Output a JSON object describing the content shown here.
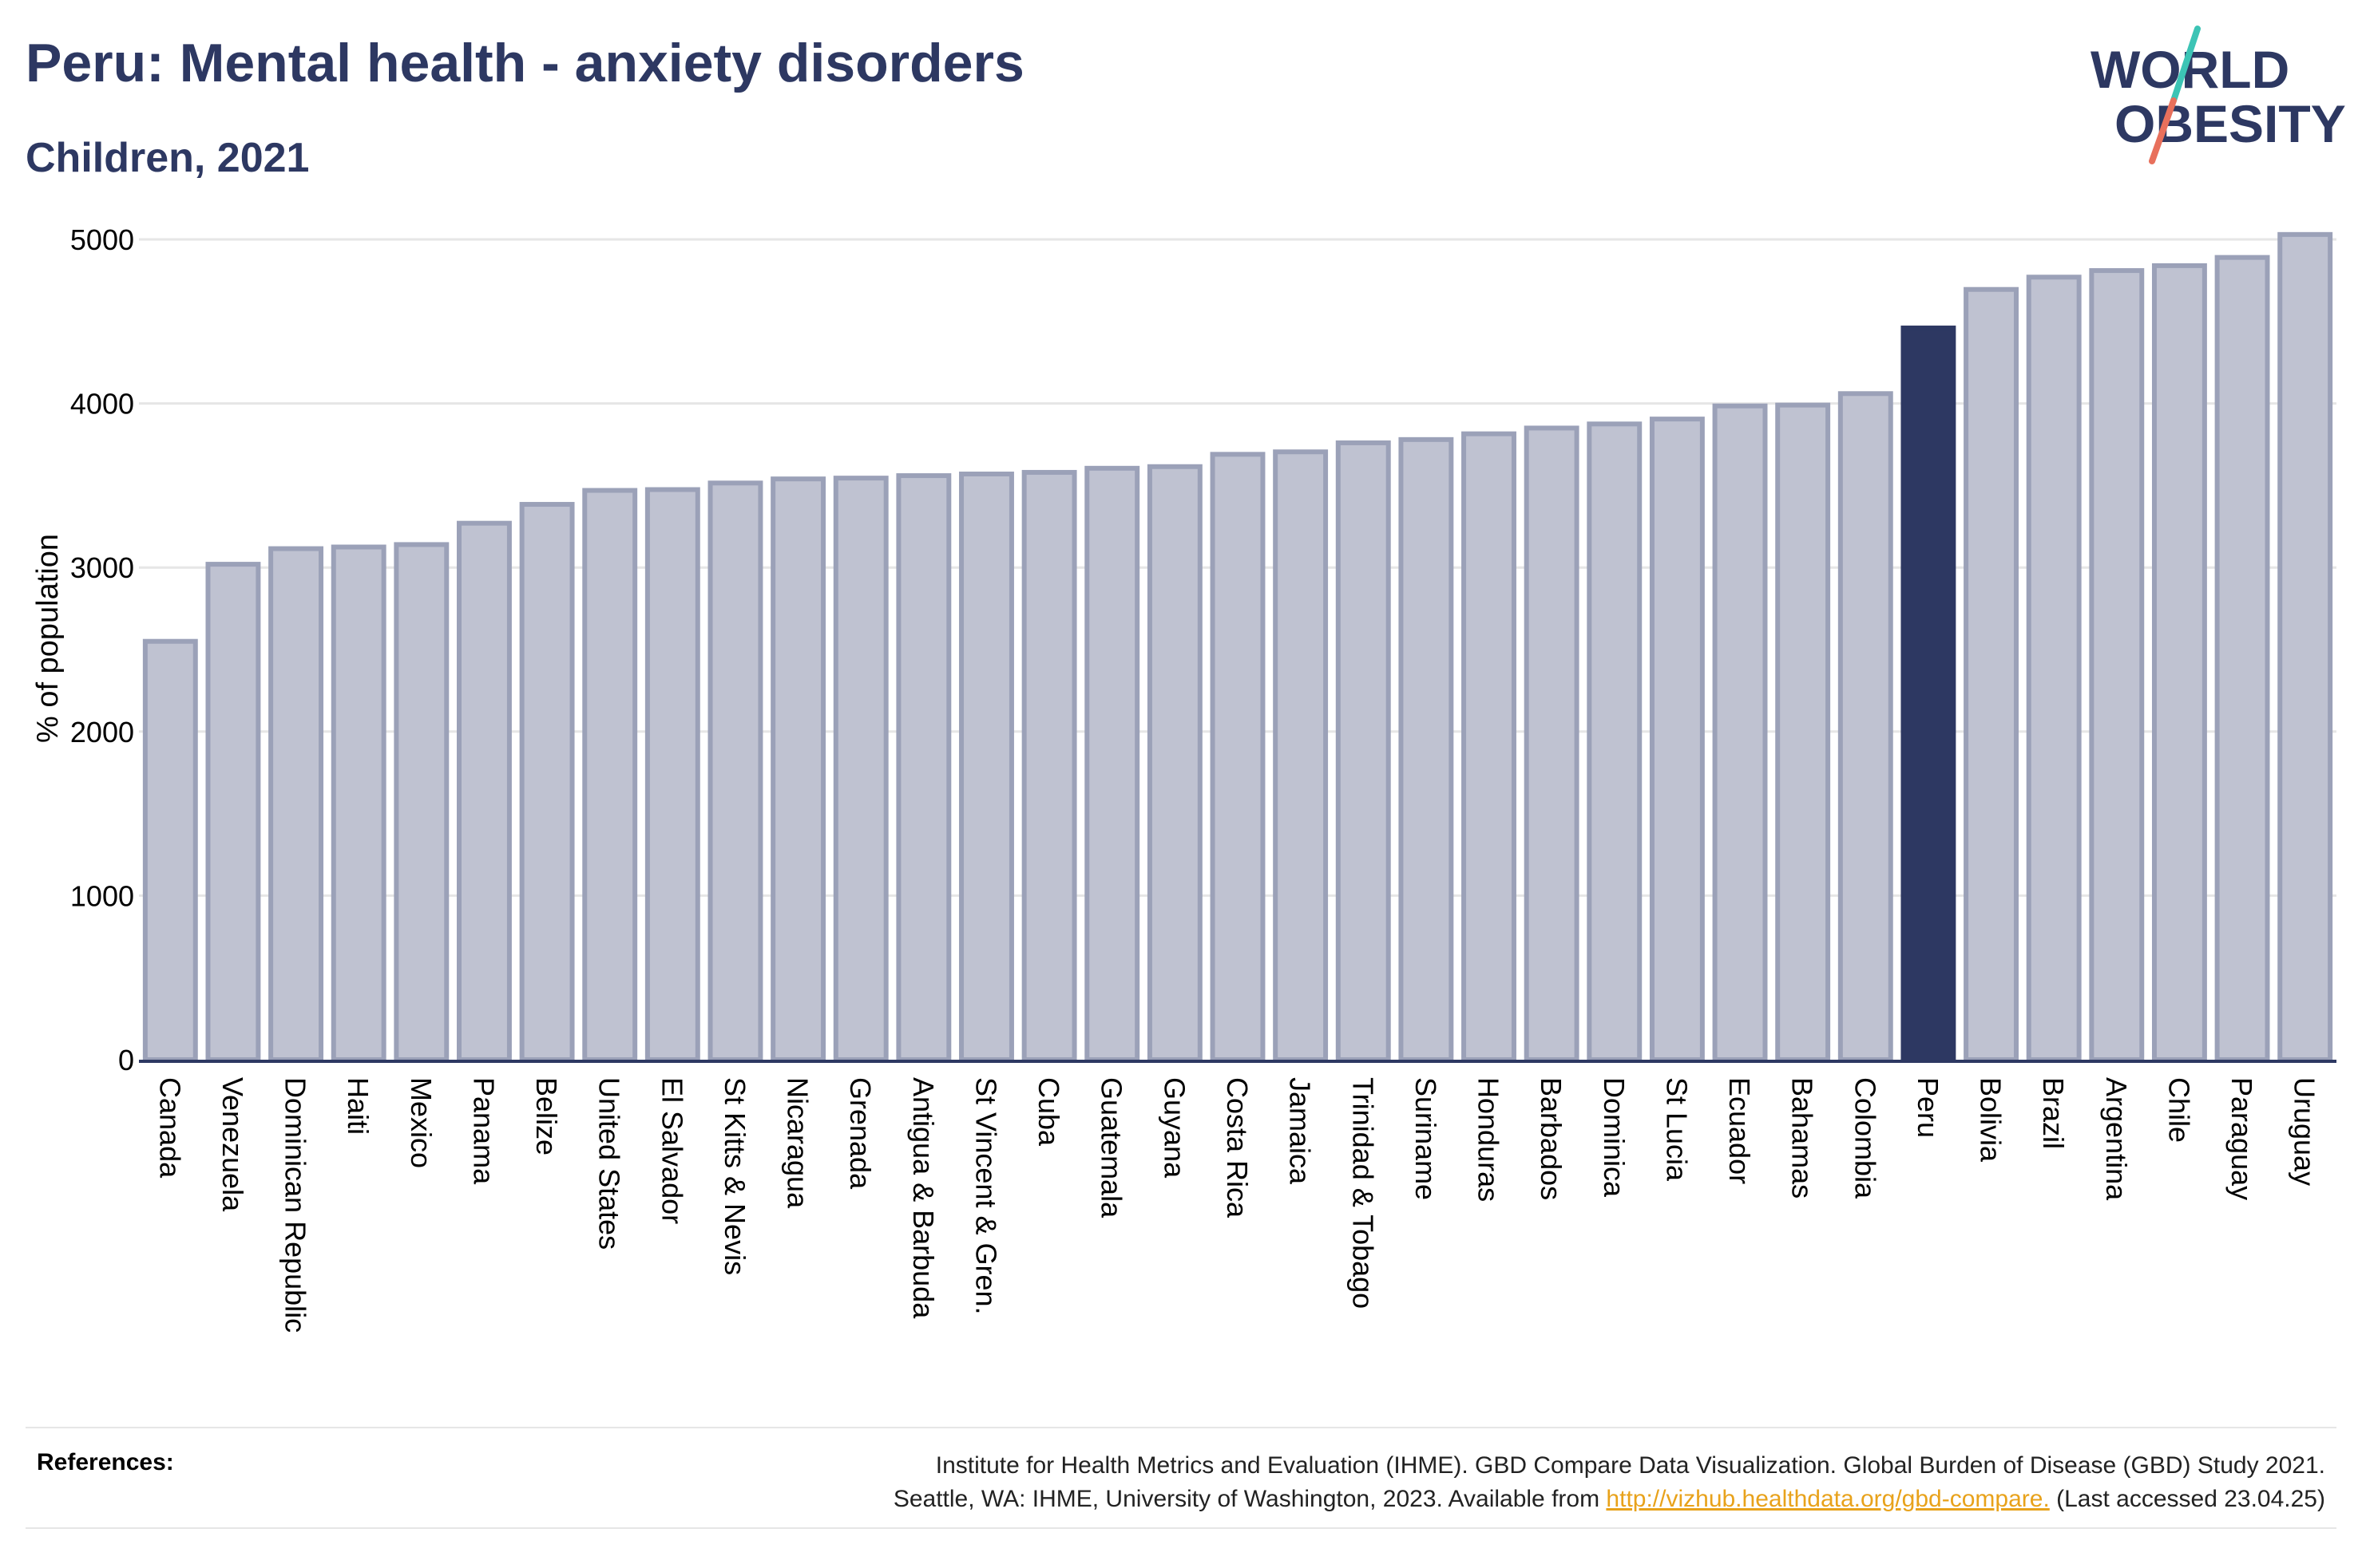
{
  "header": {
    "title": "Peru: Mental health - anxiety disorders",
    "subtitle": "Children, 2021"
  },
  "logo": {
    "line1": "WORLD",
    "line2": "OBESITY"
  },
  "colors": {
    "highlight": "#2d3862",
    "bar_fill": "#bfc2d1",
    "bar_stroke": "#9ba1b8",
    "gridline": "#e6e6e6",
    "axis": "#2d3862",
    "link": "#e8a21b",
    "logo_teal": "#3cc4b5",
    "logo_coral": "#e8705c"
  },
  "chart_data": {
    "type": "bar",
    "title": "Peru: Mental health - anxiety disorders",
    "subtitle": "Children, 2021",
    "xlabel": "",
    "ylabel": "% of population",
    "ylim": [
      0,
      5000
    ],
    "yticks": [
      0,
      1000,
      2000,
      3000,
      4000,
      5000
    ],
    "grid": true,
    "highlight": "Peru",
    "categories": [
      "Canada",
      "Venezuela",
      "Dominican Republic",
      "Haiti",
      "Mexico",
      "Panama",
      "Belize",
      "United States",
      "El Salvador",
      "St Kitts & Nevis",
      "Nicaragua",
      "Grenada",
      "Antigua & Barbuda",
      "St Vincent & Gren.",
      "Cuba",
      "Guatemala",
      "Guyana",
      "Costa Rica",
      "Jamaica",
      "Trinidad & Tobago",
      "Suriname",
      "Honduras",
      "Barbados",
      "Dominica",
      "St Lucia",
      "Ecuador",
      "Bahamas",
      "Colombia",
      "Peru",
      "Bolivia",
      "Brazil",
      "Argentina",
      "Chile",
      "Paraguay",
      "Uruguay"
    ],
    "values": [
      2550,
      3020,
      3115,
      3125,
      3140,
      3270,
      3385,
      3470,
      3475,
      3515,
      3540,
      3545,
      3560,
      3570,
      3580,
      3605,
      3615,
      3690,
      3705,
      3760,
      3780,
      3815,
      3850,
      3875,
      3905,
      3985,
      3990,
      4060,
      4460,
      4695,
      4770,
      4810,
      4840,
      4890,
      5030
    ]
  },
  "references": {
    "label": "References:",
    "line1": "Institute for Health Metrics and Evaluation (IHME). GBD Compare Data Visualization. Global Burden of Disease (GBD) Study 2021.",
    "line2_prefix": "Seattle, WA: IHME, University of Washington, 2023. Available from ",
    "link": "http://vizhub.healthdata.org/gbd-compare.",
    "line2_suffix": " (Last accessed 23.04.25)"
  }
}
